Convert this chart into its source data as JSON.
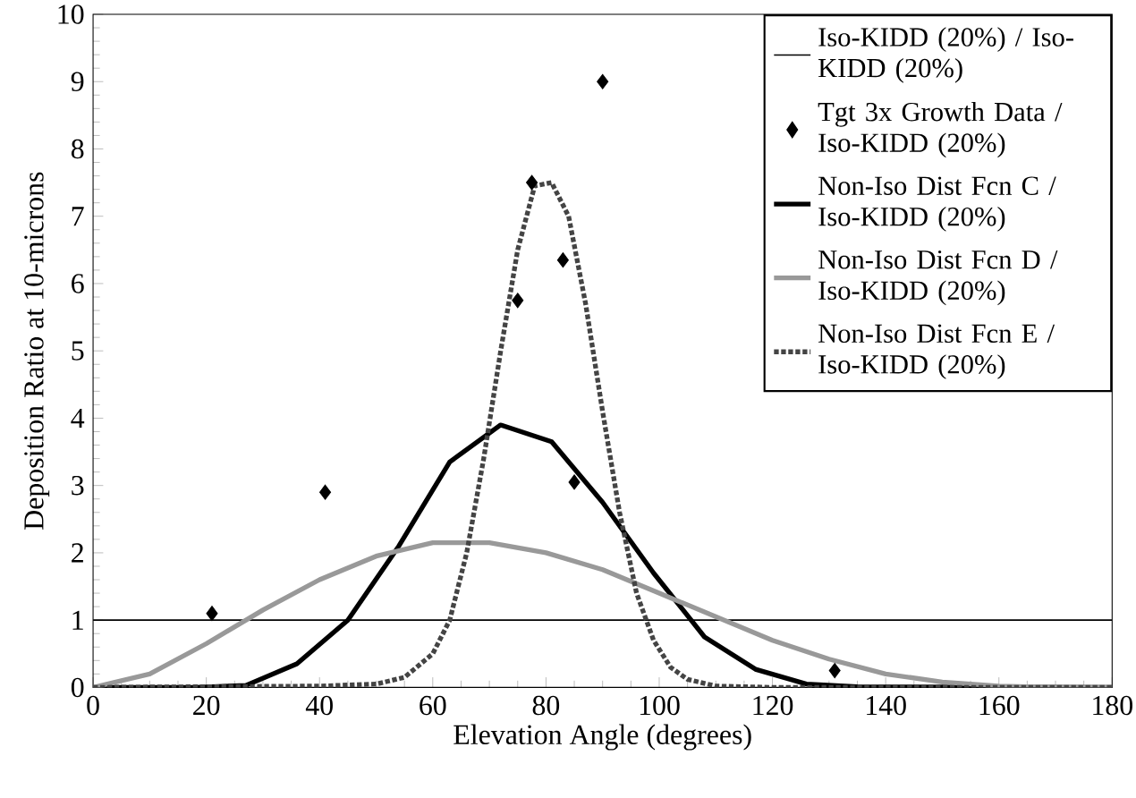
{
  "chart_data": {
    "type": "line",
    "xlabel": "Elevation Angle (degrees)",
    "ylabel": "Deposition Ratio at 10-microns",
    "xlim": [
      0,
      180
    ],
    "ylim": [
      0,
      10
    ],
    "xticks": [
      0,
      20,
      40,
      60,
      80,
      100,
      120,
      140,
      160,
      180
    ],
    "yticks": [
      0,
      1,
      2,
      3,
      4,
      5,
      6,
      7,
      8,
      9,
      10
    ],
    "grid": false,
    "legend": "top right",
    "series": [
      {
        "name": "Iso-KIDD (20%) / Iso-KIDD (20%)",
        "color": "#000000",
        "line_style": "solid",
        "x": [
          0,
          180
        ],
        "values": [
          1,
          1
        ]
      },
      {
        "name": "Tgt 3x Growth Data / Iso-KIDD (20%)",
        "type": "scatter",
        "marker": "diamond",
        "color": "#000000",
        "x": [
          21,
          41,
          75,
          77.5,
          83,
          85,
          90,
          131
        ],
        "values": [
          1.1,
          2.9,
          5.75,
          7.5,
          6.35,
          3.05,
          9.0,
          0.25
        ]
      },
      {
        "name": "Non-Iso Dist Fcn C / Iso-KIDD (20%)",
        "color": "#000000",
        "line_style": "solid",
        "x": [
          0,
          18,
          27,
          36,
          45,
          54,
          63,
          72,
          81,
          90,
          99,
          108,
          117,
          126,
          135,
          180
        ],
        "values": [
          0,
          0,
          0.03,
          0.35,
          1.0,
          2.1,
          3.35,
          3.9,
          3.65,
          2.75,
          1.7,
          0.75,
          0.27,
          0.05,
          0.01,
          0
        ]
      },
      {
        "name": "Non-Iso Dist Fcn D / Iso-KIDD (20%)",
        "color": "#999999",
        "line_style": "solid",
        "x": [
          0,
          10,
          20,
          30,
          40,
          50,
          60,
          70,
          80,
          90,
          100,
          110,
          120,
          130,
          140,
          150,
          160,
          170,
          180
        ],
        "values": [
          0,
          0.2,
          0.65,
          1.15,
          1.6,
          1.95,
          2.15,
          2.15,
          2.0,
          1.75,
          1.4,
          1.05,
          0.7,
          0.42,
          0.2,
          0.08,
          0.02,
          0,
          0
        ]
      },
      {
        "name": "Non-Iso Dist Fcn E / Iso-KIDD (20%)",
        "color": "#444444",
        "line_style": "dotted",
        "x": [
          0,
          40,
          50,
          55,
          60,
          63,
          66,
          69,
          72,
          75,
          78,
          81,
          84,
          87,
          90,
          93,
          96,
          99,
          102,
          105,
          110,
          120,
          180
        ],
        "values": [
          0,
          0.02,
          0.05,
          0.15,
          0.5,
          1.0,
          2.0,
          3.4,
          5.0,
          6.5,
          7.45,
          7.5,
          7.0,
          5.7,
          4.1,
          2.6,
          1.4,
          0.7,
          0.3,
          0.12,
          0.02,
          0,
          0
        ]
      }
    ]
  }
}
